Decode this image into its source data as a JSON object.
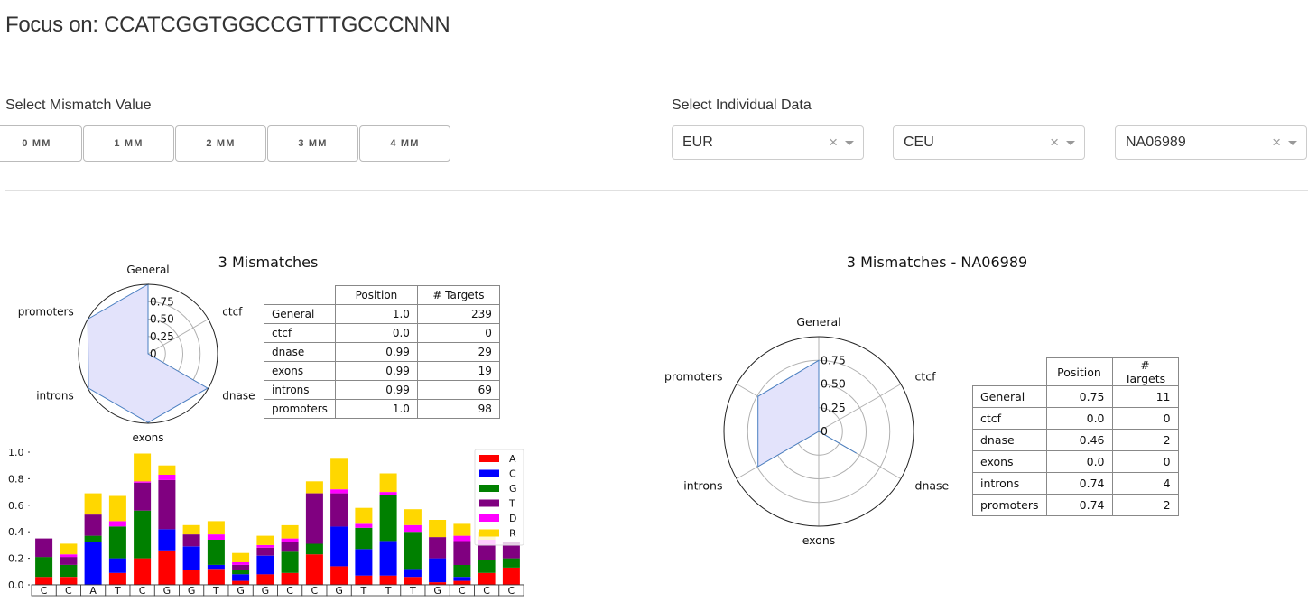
{
  "focus": {
    "prefix": "Focus on: ",
    "sequence": "CCATCGGTGGCCGTTTGCCCNNN"
  },
  "mismatch": {
    "label": "Select Mismatch Value",
    "buttons": [
      "0 MM",
      "1 MM",
      "2 MM",
      "3 MM",
      "4 MM"
    ]
  },
  "individual": {
    "label": "Select Individual Data",
    "selects": [
      {
        "value": "EUR",
        "clear": "×"
      },
      {
        "value": "CEU",
        "clear": "×"
      },
      {
        "value": "NA06989",
        "clear": "×"
      }
    ]
  },
  "left": {
    "title": "3 Mismatches",
    "radar_ticks": [
      "0",
      "0.25",
      "0.50",
      "0.75"
    ],
    "table_headers": [
      "Position",
      "# Targets"
    ],
    "rows": [
      {
        "name": "General",
        "position": "1.0",
        "targets": "239"
      },
      {
        "name": "ctcf",
        "position": "0.0",
        "targets": "0"
      },
      {
        "name": "dnase",
        "position": "0.99",
        "targets": "29"
      },
      {
        "name": "exons",
        "position": "0.99",
        "targets": "19"
      },
      {
        "name": "introns",
        "position": "0.99",
        "targets": "69"
      },
      {
        "name": "promoters",
        "position": "1.0",
        "targets": "98"
      }
    ]
  },
  "right": {
    "title": "3 Mismatches - NA06989",
    "radar_ticks": [
      "0",
      "0.25",
      "0.50",
      "0.75"
    ],
    "table_headers": [
      "Position",
      "# Targets"
    ],
    "rows": [
      {
        "name": "General",
        "position": "0.75",
        "targets": "11"
      },
      {
        "name": "ctcf",
        "position": "0.0",
        "targets": "0"
      },
      {
        "name": "dnase",
        "position": "0.46",
        "targets": "2"
      },
      {
        "name": "exons",
        "position": "0.0",
        "targets": "0"
      },
      {
        "name": "introns",
        "position": "0.74",
        "targets": "4"
      },
      {
        "name": "promoters",
        "position": "0.74",
        "targets": "2"
      }
    ]
  },
  "chart_data": [
    {
      "type": "radar",
      "title": "3 Mismatches",
      "axes": [
        "General",
        "ctcf",
        "dnase",
        "exons",
        "introns",
        "promoters"
      ],
      "values": [
        1.0,
        0.0,
        0.99,
        0.99,
        0.99,
        1.0
      ],
      "rlim": [
        0,
        1
      ],
      "ticks": [
        0,
        0.25,
        0.5,
        0.75
      ],
      "fill_color": "#e3e3fb",
      "line_color": "#4a7fc1"
    },
    {
      "type": "radar",
      "title": "3 Mismatches - NA06989",
      "axes": [
        "General",
        "ctcf",
        "dnase",
        "exons",
        "introns",
        "promoters"
      ],
      "values": [
        0.75,
        0.0,
        0.46,
        0.0,
        0.74,
        0.74
      ],
      "rlim": [
        0,
        1
      ],
      "ticks": [
        0,
        0.25,
        0.5,
        0.75
      ],
      "fill_color": "#e3e3fb",
      "line_color": "#4a7fc1"
    },
    {
      "type": "bar",
      "stacked": true,
      "categories": [
        "C",
        "C",
        "A",
        "T",
        "C",
        "G",
        "G",
        "T",
        "G",
        "G",
        "C",
        "C",
        "G",
        "T",
        "T",
        "T",
        "G",
        "C",
        "C",
        "C"
      ],
      "ylim": [
        0,
        1.0
      ],
      "yticks": [
        "0.0",
        "0.2",
        "0.4",
        "0.6",
        "0.8",
        "1.0"
      ],
      "legend_position": "top-right",
      "series": [
        {
          "name": "A",
          "color": "#ff0000",
          "values": [
            0.06,
            0.06,
            0.0,
            0.09,
            0.2,
            0.26,
            0.11,
            0.12,
            0.03,
            0.08,
            0.09,
            0.23,
            0.14,
            0.07,
            0.07,
            0.06,
            0.02,
            0.03,
            0.09,
            0.13
          ]
        },
        {
          "name": "C",
          "color": "#0000ff",
          "values": [
            0.0,
            0.0,
            0.32,
            0.11,
            0.0,
            0.16,
            0.18,
            0.03,
            0.05,
            0.14,
            0.0,
            0.0,
            0.3,
            0.2,
            0.26,
            0.06,
            0.18,
            0.03,
            0.0,
            0.0
          ]
        },
        {
          "name": "G",
          "color": "#008000",
          "values": [
            0.15,
            0.09,
            0.05,
            0.24,
            0.36,
            0.0,
            0.0,
            0.19,
            0.03,
            0.0,
            0.16,
            0.08,
            0.0,
            0.16,
            0.35,
            0.28,
            0.0,
            0.09,
            0.1,
            0.07
          ]
        },
        {
          "name": "T",
          "color": "#800080",
          "values": [
            0.14,
            0.06,
            0.16,
            0.0,
            0.21,
            0.37,
            0.09,
            0.0,
            0.04,
            0.06,
            0.07,
            0.38,
            0.25,
            0.0,
            0.0,
            0.0,
            0.16,
            0.18,
            0.11,
            0.12
          ]
        },
        {
          "name": "D",
          "color": "#ff00ff",
          "values": [
            0.0,
            0.02,
            0.0,
            0.04,
            0.01,
            0.04,
            0.0,
            0.04,
            0.02,
            0.02,
            0.03,
            0.0,
            0.03,
            0.03,
            0.02,
            0.05,
            0.0,
            0.04,
            0.04,
            0.0
          ]
        },
        {
          "name": "R",
          "color": "#ffd700",
          "values": [
            0.0,
            0.08,
            0.16,
            0.19,
            0.21,
            0.07,
            0.07,
            0.1,
            0.07,
            0.07,
            0.1,
            0.09,
            0.23,
            0.12,
            0.14,
            0.12,
            0.13,
            0.09,
            0.06,
            0.0
          ]
        }
      ]
    }
  ]
}
